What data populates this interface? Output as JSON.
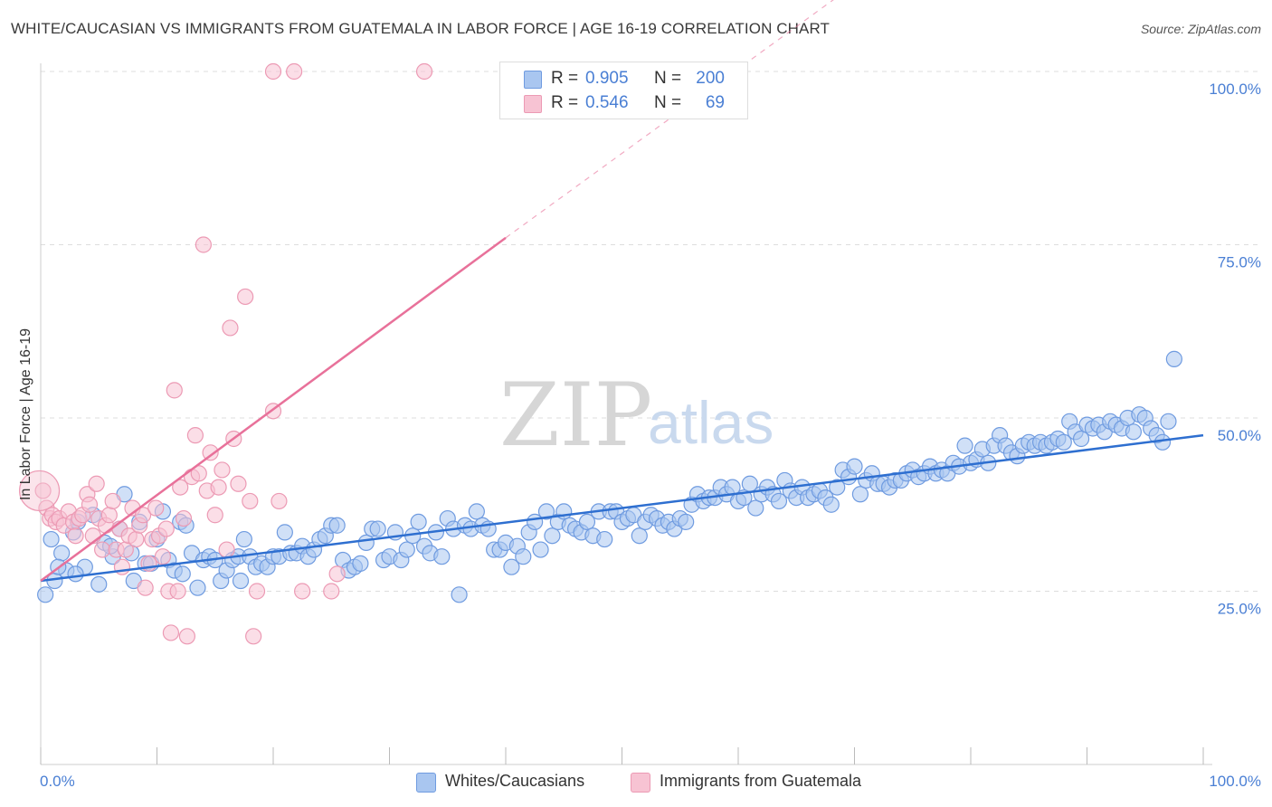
{
  "title": "WHITE/CAUCASIAN VS IMMIGRANTS FROM GUATEMALA IN LABOR FORCE | AGE 16-19 CORRELATION CHART",
  "source": "Source: ZipAtlas.com",
  "watermark": {
    "zip": "ZIP",
    "atlas": "atlas"
  },
  "colors": {
    "blue_fill": "#a9c6f0",
    "blue_stroke": "#6f9be0",
    "blue_line": "#2e6fd0",
    "pink_fill": "#f7c3d3",
    "pink_stroke": "#ec9ab4",
    "pink_line": "#e8719a",
    "grid": "#dddddd",
    "tick_text": "#4a7fd4"
  },
  "stats": {
    "rows": [
      {
        "r_label": "R =",
        "r_value": "0.905",
        "n_label": "N =",
        "n_value": "200",
        "color": "#a9c6f0"
      },
      {
        "r_label": "R =",
        "r_value": "0.546",
        "n_label": "N =",
        "n_value": "69",
        "color": "#f7c3d3"
      }
    ]
  },
  "legend": {
    "items": [
      {
        "label": "Whites/Caucasians",
        "color": "#a9c6f0"
      },
      {
        "label": "Immigrants from Guatemala",
        "color": "#f7c3d3"
      }
    ]
  },
  "chart_data": {
    "type": "scatter",
    "title": "WHITE/CAUCASIAN VS IMMIGRANTS FROM GUATEMALA IN LABOR FORCE | AGE 16-19 CORRELATION CHART",
    "xlabel": "",
    "ylabel": "In Labor Force | Age 16-19",
    "xlim": [
      0,
      100
    ],
    "ylim": [
      0,
      105
    ],
    "x_tick_labels": [
      "0.0%",
      "100.0%"
    ],
    "y_ticks": [
      25,
      50,
      75,
      100
    ],
    "y_tick_labels": [
      "25.0%",
      "50.0%",
      "75.0%",
      "100.0%"
    ],
    "grid": true,
    "legend_position": "bottom",
    "series": [
      {
        "name": "Whites/Caucasians",
        "color": "#a9c6f0",
        "trend": {
          "x": [
            0,
            100
          ],
          "y": [
            26.5,
            47.5
          ],
          "dashed_from": null
        },
        "points": [
          [
            0.4,
            24.5
          ],
          [
            0.9,
            32.5
          ],
          [
            1.2,
            26.5
          ],
          [
            1.8,
            30.5
          ],
          [
            2.2,
            28
          ],
          [
            2.8,
            33.5
          ],
          [
            3.2,
            35
          ],
          [
            3.8,
            28.5
          ],
          [
            4.5,
            36
          ],
          [
            5,
            26
          ],
          [
            5.5,
            32
          ],
          [
            6.2,
            30
          ],
          [
            6.8,
            34
          ],
          [
            7.2,
            39
          ],
          [
            7.8,
            30.5
          ],
          [
            8.5,
            35
          ],
          [
            9,
            29
          ],
          [
            9.5,
            29
          ],
          [
            10,
            32.5
          ],
          [
            10.5,
            36.5
          ],
          [
            11,
            29.5
          ],
          [
            11.5,
            28
          ],
          [
            12,
            35
          ],
          [
            12.5,
            34.5
          ],
          [
            13,
            30.5
          ],
          [
            13.5,
            25.5
          ],
          [
            14,
            29.5
          ],
          [
            14.5,
            30
          ],
          [
            15,
            29.5
          ],
          [
            15.5,
            26.5
          ],
          [
            16,
            28
          ],
          [
            16.5,
            29.5
          ],
          [
            17,
            30
          ],
          [
            17.5,
            32.5
          ],
          [
            18,
            30
          ],
          [
            18.5,
            28.5
          ],
          [
            19,
            29
          ],
          [
            19.5,
            28.5
          ],
          [
            20,
            30
          ],
          [
            20.5,
            30
          ],
          [
            21,
            33.5
          ],
          [
            21.5,
            30.5
          ],
          [
            22,
            30.5
          ],
          [
            22.5,
            31.5
          ],
          [
            23,
            30
          ],
          [
            23.5,
            31
          ],
          [
            24,
            32.5
          ],
          [
            24.5,
            33
          ],
          [
            25,
            34.5
          ],
          [
            25.5,
            34.5
          ],
          [
            26,
            29.5
          ],
          [
            26.5,
            28
          ],
          [
            27,
            28.5
          ],
          [
            27.5,
            29
          ],
          [
            28,
            32
          ],
          [
            28.5,
            34
          ],
          [
            29,
            34
          ],
          [
            29.5,
            29.5
          ],
          [
            30,
            30
          ],
          [
            30.5,
            33.5
          ],
          [
            31,
            29.5
          ],
          [
            31.5,
            31
          ],
          [
            32,
            33
          ],
          [
            32.5,
            35
          ],
          [
            33,
            31.5
          ],
          [
            33.5,
            30.5
          ],
          [
            34,
            33.5
          ],
          [
            34.5,
            30
          ],
          [
            35,
            35.5
          ],
          [
            35.5,
            34
          ],
          [
            36,
            24.5
          ],
          [
            36.5,
            34.5
          ],
          [
            37,
            34
          ],
          [
            37.5,
            36.5
          ],
          [
            38,
            34.5
          ],
          [
            38.5,
            34
          ],
          [
            39,
            31
          ],
          [
            39.5,
            31
          ],
          [
            40,
            32
          ],
          [
            40.5,
            28.5
          ],
          [
            41,
            31.5
          ],
          [
            41.5,
            30
          ],
          [
            42,
            33.5
          ],
          [
            42.5,
            35
          ],
          [
            43,
            31
          ],
          [
            43.5,
            36.5
          ],
          [
            44,
            33
          ],
          [
            44.5,
            35
          ],
          [
            45,
            36.5
          ],
          [
            45.5,
            34.5
          ],
          [
            46,
            34
          ],
          [
            46.5,
            33.5
          ],
          [
            47,
            35
          ],
          [
            47.5,
            33
          ],
          [
            48,
            36.5
          ],
          [
            48.5,
            32.5
          ],
          [
            49,
            36.5
          ],
          [
            49.5,
            36.5
          ],
          [
            50,
            35
          ],
          [
            50.5,
            35.5
          ],
          [
            51,
            36
          ],
          [
            51.5,
            33
          ],
          [
            52,
            35
          ],
          [
            52.5,
            36
          ],
          [
            53,
            35.5
          ],
          [
            53.5,
            34.5
          ],
          [
            54,
            35
          ],
          [
            54.5,
            34
          ],
          [
            55,
            35.5
          ],
          [
            55.5,
            35
          ],
          [
            56,
            37.5
          ],
          [
            56.5,
            39
          ],
          [
            57,
            38
          ],
          [
            57.5,
            38.5
          ],
          [
            58,
            38.5
          ],
          [
            58.5,
            40
          ],
          [
            59,
            39
          ],
          [
            59.5,
            40
          ],
          [
            60,
            38
          ],
          [
            60.5,
            38.5
          ],
          [
            61,
            40.5
          ],
          [
            61.5,
            37
          ],
          [
            62,
            39
          ],
          [
            62.5,
            40
          ],
          [
            63,
            39
          ],
          [
            63.5,
            38
          ],
          [
            64,
            41
          ],
          [
            64.5,
            39.5
          ],
          [
            65,
            38.5
          ],
          [
            65.5,
            40
          ],
          [
            66,
            38.5
          ],
          [
            66.5,
            39
          ],
          [
            67,
            39.5
          ],
          [
            67.5,
            38.5
          ],
          [
            68,
            37.5
          ],
          [
            68.5,
            40
          ],
          [
            69,
            42.5
          ],
          [
            69.5,
            41.5
          ],
          [
            70,
            43
          ],
          [
            70.5,
            39
          ],
          [
            71,
            41
          ],
          [
            71.5,
            42
          ],
          [
            72,
            40.5
          ],
          [
            72.5,
            40.5
          ],
          [
            73,
            40
          ],
          [
            73.5,
            41
          ],
          [
            74,
            41
          ],
          [
            74.5,
            42
          ],
          [
            75,
            42.5
          ],
          [
            75.5,
            41.5
          ],
          [
            76,
            42
          ],
          [
            76.5,
            43
          ],
          [
            77,
            42
          ],
          [
            77.5,
            42.5
          ],
          [
            78,
            42
          ],
          [
            78.5,
            43.5
          ],
          [
            79,
            43
          ],
          [
            79.5,
            46
          ],
          [
            80,
            43.5
          ],
          [
            80.5,
            44
          ],
          [
            81,
            45.5
          ],
          [
            81.5,
            43.5
          ],
          [
            82,
            46
          ],
          [
            82.5,
            47.5
          ],
          [
            83,
            46
          ],
          [
            83.5,
            45
          ],
          [
            84,
            44.5
          ],
          [
            84.5,
            46
          ],
          [
            85,
            46.5
          ],
          [
            85.5,
            46
          ],
          [
            86,
            46.5
          ],
          [
            86.5,
            46
          ],
          [
            87,
            46.5
          ],
          [
            87.5,
            47
          ],
          [
            88,
            46.5
          ],
          [
            88.5,
            49.5
          ],
          [
            89,
            48
          ],
          [
            89.5,
            47
          ],
          [
            90,
            49
          ],
          [
            90.5,
            48.5
          ],
          [
            91,
            49
          ],
          [
            91.5,
            48
          ],
          [
            92,
            49.5
          ],
          [
            92.5,
            49
          ],
          [
            93,
            48.5
          ],
          [
            93.5,
            50
          ],
          [
            94,
            48
          ],
          [
            94.5,
            50.5
          ],
          [
            95,
            50
          ],
          [
            95.5,
            48.5
          ],
          [
            96,
            47.5
          ],
          [
            96.5,
            46.5
          ],
          [
            97,
            49.5
          ],
          [
            97.5,
            58.5
          ],
          [
            1.5,
            28.5
          ],
          [
            3,
            27.5
          ],
          [
            6,
            31.5
          ],
          [
            8,
            26.5
          ],
          [
            12.2,
            27.5
          ],
          [
            17.2,
            26.5
          ]
        ]
      },
      {
        "name": "Immigrants from Guatemala",
        "color": "#f7c3d3",
        "trend": {
          "x": [
            0,
            40,
            72
          ],
          "y": [
            26.5,
            76,
            115
          ],
          "dashed_from": 40
        },
        "points": [
          [
            0.2,
            39.5
          ],
          [
            0.5,
            37
          ],
          [
            0.8,
            35.5
          ],
          [
            1,
            36
          ],
          [
            1.3,
            35
          ],
          [
            1.6,
            35.5
          ],
          [
            2,
            34.5
          ],
          [
            2.4,
            36.5
          ],
          [
            2.8,
            35
          ],
          [
            3,
            33
          ],
          [
            3.3,
            35.5
          ],
          [
            3.6,
            36
          ],
          [
            4,
            39
          ],
          [
            4.2,
            37.5
          ],
          [
            4.5,
            33
          ],
          [
            4.8,
            40.5
          ],
          [
            5,
            35.5
          ],
          [
            5.3,
            31
          ],
          [
            5.6,
            34.5
          ],
          [
            5.9,
            36
          ],
          [
            6.2,
            38
          ],
          [
            6.5,
            31
          ],
          [
            6.8,
            34
          ],
          [
            7,
            28.5
          ],
          [
            7.3,
            31
          ],
          [
            7.6,
            33
          ],
          [
            7.9,
            37
          ],
          [
            8.2,
            32.5
          ],
          [
            8.5,
            34.5
          ],
          [
            8.8,
            36
          ],
          [
            9,
            25.5
          ],
          [
            9.3,
            29
          ],
          [
            9.6,
            32.5
          ],
          [
            9.9,
            37
          ],
          [
            10.2,
            33
          ],
          [
            10.5,
            30
          ],
          [
            10.8,
            34
          ],
          [
            11,
            25
          ],
          [
            11.2,
            19
          ],
          [
            11.5,
            54
          ],
          [
            11.8,
            25
          ],
          [
            12,
            40
          ],
          [
            12.3,
            35.5
          ],
          [
            12.6,
            18.5
          ],
          [
            13,
            41.5
          ],
          [
            13.3,
            47.5
          ],
          [
            13.6,
            42
          ],
          [
            14,
            75
          ],
          [
            14.3,
            39.5
          ],
          [
            14.6,
            45
          ],
          [
            15,
            36
          ],
          [
            15.3,
            40
          ],
          [
            15.6,
            42.5
          ],
          [
            16,
            31
          ],
          [
            16.3,
            63
          ],
          [
            16.6,
            47
          ],
          [
            17,
            40.5
          ],
          [
            17.6,
            67.5
          ],
          [
            18,
            38
          ],
          [
            18.3,
            18.5
          ],
          [
            18.6,
            25
          ],
          [
            20,
            51
          ],
          [
            20.5,
            38
          ],
          [
            22.5,
            25
          ],
          [
            25,
            25
          ],
          [
            25.5,
            27.5
          ],
          [
            20,
            100
          ],
          [
            21.8,
            100
          ],
          [
            33,
            100
          ]
        ]
      }
    ]
  }
}
